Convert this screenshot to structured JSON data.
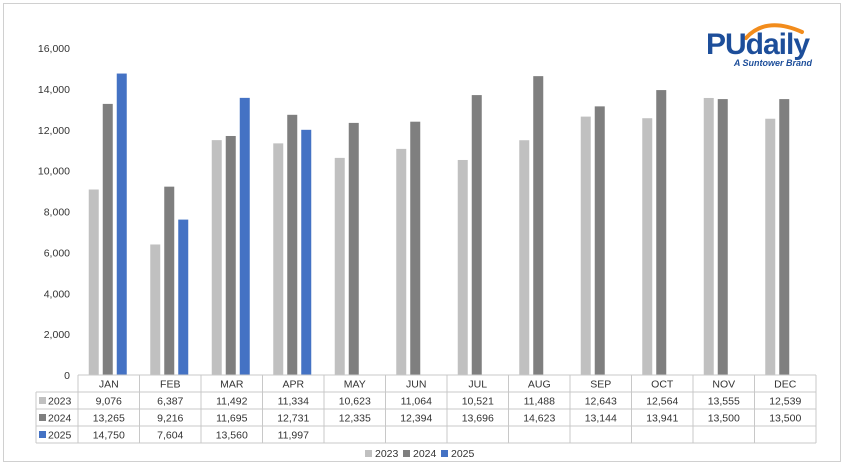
{
  "logo": {
    "name": "PUdaily",
    "tagline": "A Suntower Brand"
  },
  "chart_data": {
    "type": "bar",
    "categories": [
      "JAN",
      "FEB",
      "MAR",
      "APR",
      "MAY",
      "JUN",
      "JUL",
      "AUG",
      "SEP",
      "OCT",
      "NOV",
      "DEC"
    ],
    "series": [
      {
        "name": "2023",
        "color": "#c0c0c0",
        "values": [
          9076,
          6387,
          11492,
          11334,
          10623,
          11064,
          10521,
          11488,
          12643,
          12564,
          13555,
          12539
        ]
      },
      {
        "name": "2024",
        "color": "#7f7f7f",
        "values": [
          13265,
          9216,
          11695,
          12731,
          12335,
          12394,
          13696,
          14623,
          13144,
          13941,
          13500,
          13500
        ]
      },
      {
        "name": "2025",
        "color": "#4472c4",
        "values": [
          14750,
          7604,
          13560,
          11997,
          null,
          null,
          null,
          null,
          null,
          null,
          null,
          null
        ]
      }
    ],
    "ylim": [
      0,
      16000
    ],
    "yticks": [
      "0",
      "2,000",
      "4,000",
      "6,000",
      "8,000",
      "10,000",
      "12,000",
      "14,000",
      "16,000"
    ],
    "data_table": true,
    "legend_position": "bottom",
    "grid": false
  }
}
